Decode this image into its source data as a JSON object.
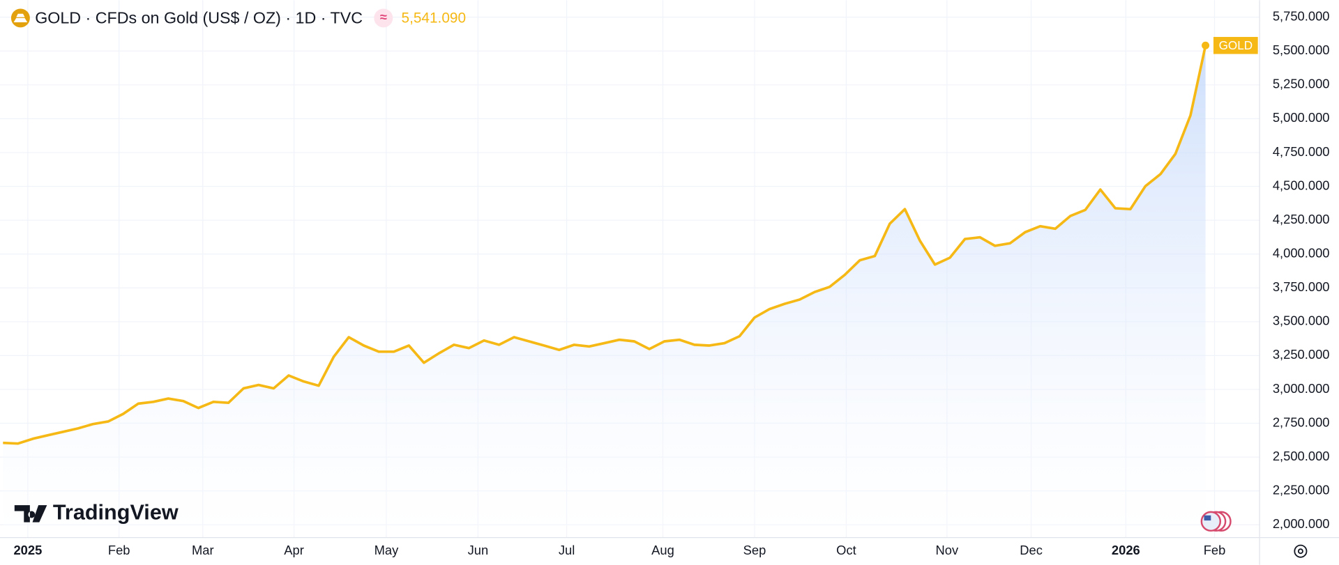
{
  "chart_data": {
    "type": "line",
    "title": "GOLD · CFDs on Gold (US$ / OZ) · 1D · TVC",
    "last_price": {
      "value": 5541.09,
      "label": "5,541.090"
    },
    "brand": "TradingView",
    "series": [
      {
        "name": "GOLD",
        "color": "#f5b814",
        "values": [
          2605,
          2600,
          2636,
          2662,
          2687,
          2712,
          2744,
          2763,
          2819,
          2895,
          2908,
          2933,
          2914,
          2863,
          2908,
          2901,
          3008,
          3033,
          3008,
          3103,
          3059,
          3027,
          3241,
          3386,
          3324,
          3279,
          3279,
          3324,
          3197,
          3267,
          3330,
          3305,
          3361,
          3330,
          3386,
          3355,
          3324,
          3292,
          3330,
          3317,
          3342,
          3367,
          3355,
          3298,
          3355,
          3367,
          3330,
          3324,
          3342,
          3393,
          3531,
          3594,
          3632,
          3664,
          3720,
          3758,
          3846,
          3954,
          3985,
          4225,
          4332,
          4099,
          3922,
          3973,
          4111,
          4124,
          4061,
          4080,
          4162,
          4206,
          4187,
          4281,
          4326,
          4477,
          4338,
          4332,
          4502,
          4590,
          4741,
          5025,
          5541.09
        ]
      }
    ],
    "xlim": [
      -0.2,
      83.2
    ],
    "xticks": [
      {
        "value": 1.65,
        "label": "2025"
      },
      {
        "value": 7.72,
        "label": "Feb"
      },
      {
        "value": 13.29,
        "label": "Mar"
      },
      {
        "value": 19.36,
        "label": "Apr"
      },
      {
        "value": 25.5,
        "label": "May"
      },
      {
        "value": 31.6,
        "label": "Jun"
      },
      {
        "value": 37.5,
        "label": "Jul"
      },
      {
        "value": 43.9,
        "label": "Aug"
      },
      {
        "value": 50.0,
        "label": "Sep"
      },
      {
        "value": 56.1,
        "label": "Oct"
      },
      {
        "value": 62.8,
        "label": "Nov"
      },
      {
        "value": 68.4,
        "label": "Dec"
      },
      {
        "value": 74.7,
        "label": "2026"
      },
      {
        "value": 80.6,
        "label": "Feb"
      }
    ],
    "ylim": [
      1918,
      5876
    ],
    "yticks": [
      {
        "value": 2000,
        "label": "2,000.000"
      },
      {
        "value": 2250,
        "label": "2,250.000"
      },
      {
        "value": 2500,
        "label": "2,500.000"
      },
      {
        "value": 2750,
        "label": "2,750.000"
      },
      {
        "value": 3000,
        "label": "3,000.000"
      },
      {
        "value": 3250,
        "label": "3,250.000"
      },
      {
        "value": 3500,
        "label": "3,500.000"
      },
      {
        "value": 3750,
        "label": "3,750.000"
      },
      {
        "value": 4000,
        "label": "4,000.000"
      },
      {
        "value": 4250,
        "label": "4,250.000"
      },
      {
        "value": 4500,
        "label": "4,500.000"
      },
      {
        "value": 4750,
        "label": "4,750.000"
      },
      {
        "value": 5000,
        "label": "5,000.000"
      },
      {
        "value": 5250,
        "label": "5,250.000"
      },
      {
        "value": 5500,
        "label": "5,500.000"
      },
      {
        "value": 5750,
        "label": "5,750.000"
      }
    ],
    "grid": true
  }
}
